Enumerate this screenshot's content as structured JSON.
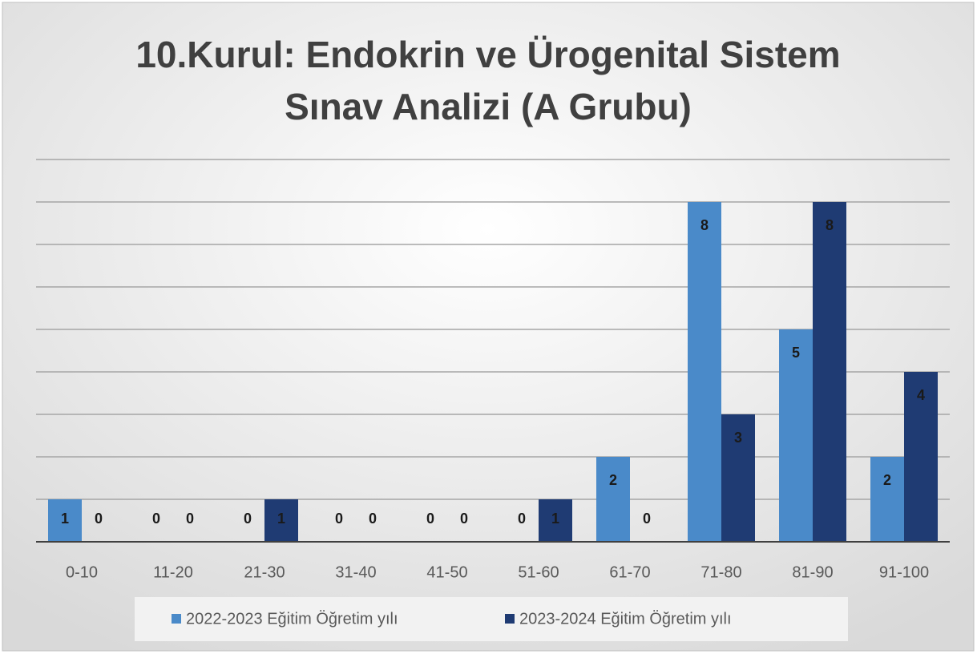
{
  "chart_data": {
    "type": "bar",
    "title": [
      "10.Kurul: Endokrin ve Ürogenital Sistem",
      "Sınav Analizi (A Grubu)"
    ],
    "categories": [
      "0-10",
      "11-20",
      "21-30",
      "31-40",
      "41-50",
      "51-60",
      "61-70",
      "71-80",
      "81-90",
      "91-100"
    ],
    "series": [
      {
        "name": "2022-2023 Eğitim Öğretim yılı",
        "color": "#4a8ac9",
        "values": [
          1,
          0,
          0,
          0,
          0,
          0,
          2,
          8,
          5,
          2
        ]
      },
      {
        "name": "2023-2024 Eğitim Öğretim yılı",
        "color": "#1f3b73",
        "values": [
          0,
          0,
          1,
          0,
          0,
          1,
          0,
          3,
          8,
          4
        ]
      }
    ],
    "ylim": [
      0,
      9
    ],
    "yticks": [
      0,
      1,
      2,
      3,
      4,
      5,
      6,
      7,
      8,
      9
    ],
    "grid": true,
    "legend": "bottom"
  }
}
